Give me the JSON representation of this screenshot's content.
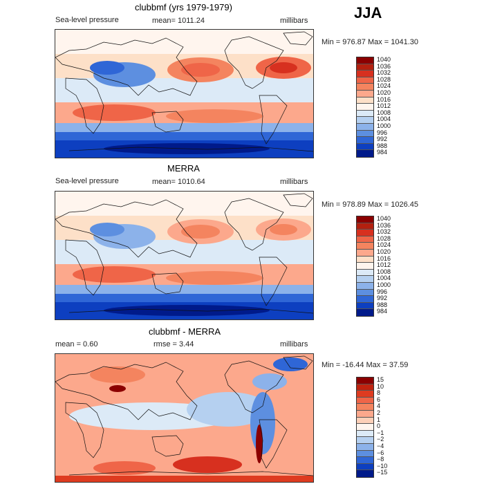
{
  "season": "JJA",
  "panels": [
    {
      "title": "clubbmf (yrs 1979-1979)",
      "left": "Sea-level pressure",
      "mid": "mean= 1011.24",
      "right": "millibars",
      "minmax": "Min = 976.87 Max = 1041.30",
      "levels": [
        "1040",
        "1036",
        "1032",
        "1028",
        "1024",
        "1020",
        "1016",
        "1012",
        "1008",
        "1004",
        "1000",
        "996",
        "992",
        "988",
        "984"
      ],
      "colors": [
        "#8b0000",
        "#b3200f",
        "#d7301f",
        "#ef6548",
        "#f4845f",
        "#fca88c",
        "#fde0c8",
        "#fff5ee",
        "#dceaf7",
        "#b5d0f0",
        "#8cb2ea",
        "#5d8fe0",
        "#2f66d6",
        "#0d3fc0",
        "#001a8a"
      ]
    },
    {
      "title": "MERRA",
      "left": "Sea-level pressure",
      "mid": "mean= 1010.64",
      "right": "millibars",
      "minmax": "Min = 978.89 Max = 1026.45",
      "levels": [
        "1040",
        "1036",
        "1032",
        "1028",
        "1024",
        "1020",
        "1016",
        "1012",
        "1008",
        "1004",
        "1000",
        "996",
        "992",
        "988",
        "984"
      ],
      "colors": [
        "#8b0000",
        "#b3200f",
        "#d7301f",
        "#ef6548",
        "#f4845f",
        "#fca88c",
        "#fde0c8",
        "#fff5ee",
        "#dceaf7",
        "#b5d0f0",
        "#8cb2ea",
        "#5d8fe0",
        "#2f66d6",
        "#0d3fc0",
        "#001a8a"
      ]
    },
    {
      "title": "clubbmf - MERRA",
      "left": "mean =    0.60",
      "mid": "rmse =    3.44",
      "right": "millibars",
      "minmax": "Min = -16.44 Max =  37.59",
      "levels": [
        "15",
        "10",
        "8",
        "6",
        "4",
        "2",
        "1",
        "0",
        "−1",
        "−2",
        "−4",
        "−6",
        "−8",
        "−10",
        "−15"
      ],
      "colors": [
        "#8b0000",
        "#c0230f",
        "#de3b20",
        "#ef6548",
        "#f4845f",
        "#fca88c",
        "#fdd0b8",
        "#fff5ee",
        "#dceaf7",
        "#b5d0f0",
        "#8cb2ea",
        "#5d8fe0",
        "#2f66d6",
        "#0d3fc0",
        "#001a8a"
      ]
    }
  ]
}
